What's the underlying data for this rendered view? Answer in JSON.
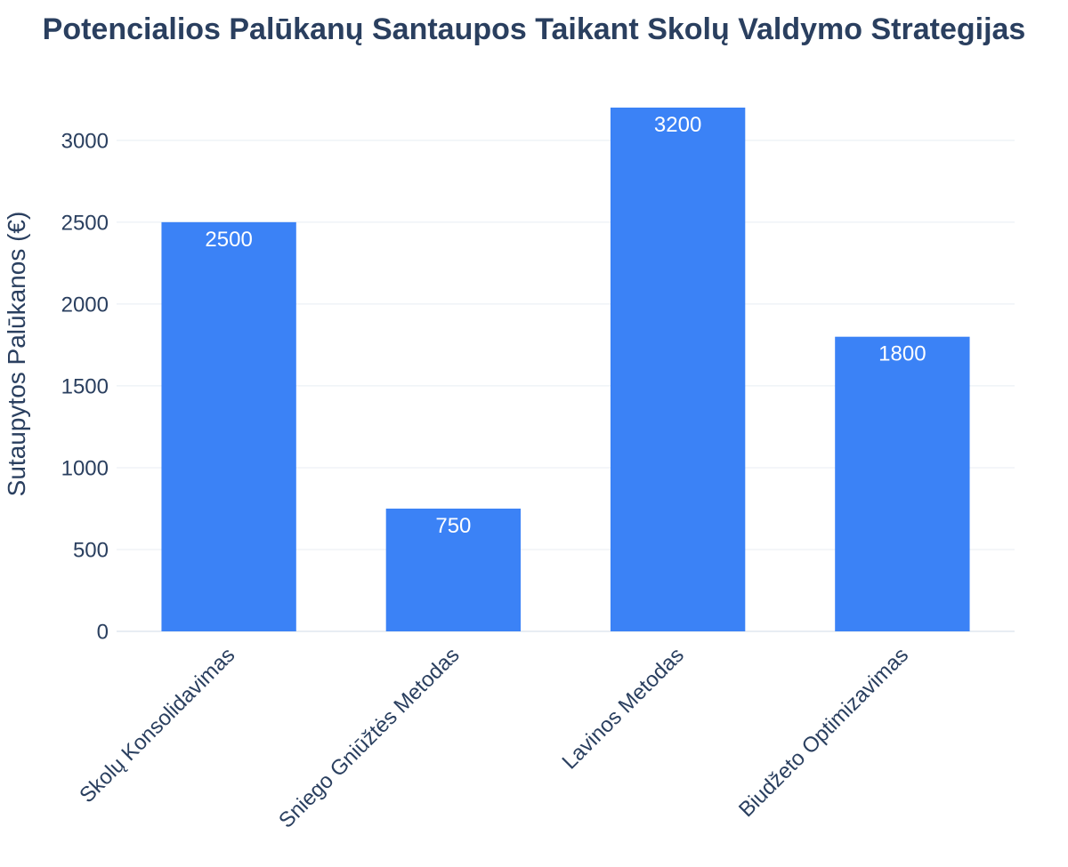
{
  "chart_data": {
    "type": "bar",
    "title": "Potencialios Palūkanų Santaupos Taikant Skolų Valdymo Strategijas",
    "xlabel": "",
    "ylabel": "Sutaupytos Palūkanos (€)",
    "categories": [
      "Skolų Konsolidavimas",
      "Sniego Gniūžtės Metodas",
      "Lavinos Metodas",
      "Biudžeto Optimizavimas"
    ],
    "values": [
      2500,
      750,
      3200,
      1800
    ],
    "ylim": [
      0,
      3200
    ],
    "yticks": [
      0,
      500,
      1000,
      1500,
      2000,
      2500,
      3000
    ],
    "grid": true,
    "legend": "none",
    "bar_color": "#3b82f6",
    "data_label_color": "#ffffff",
    "text_color": "#2a3f5f",
    "grid_color": "#e8edf3"
  }
}
